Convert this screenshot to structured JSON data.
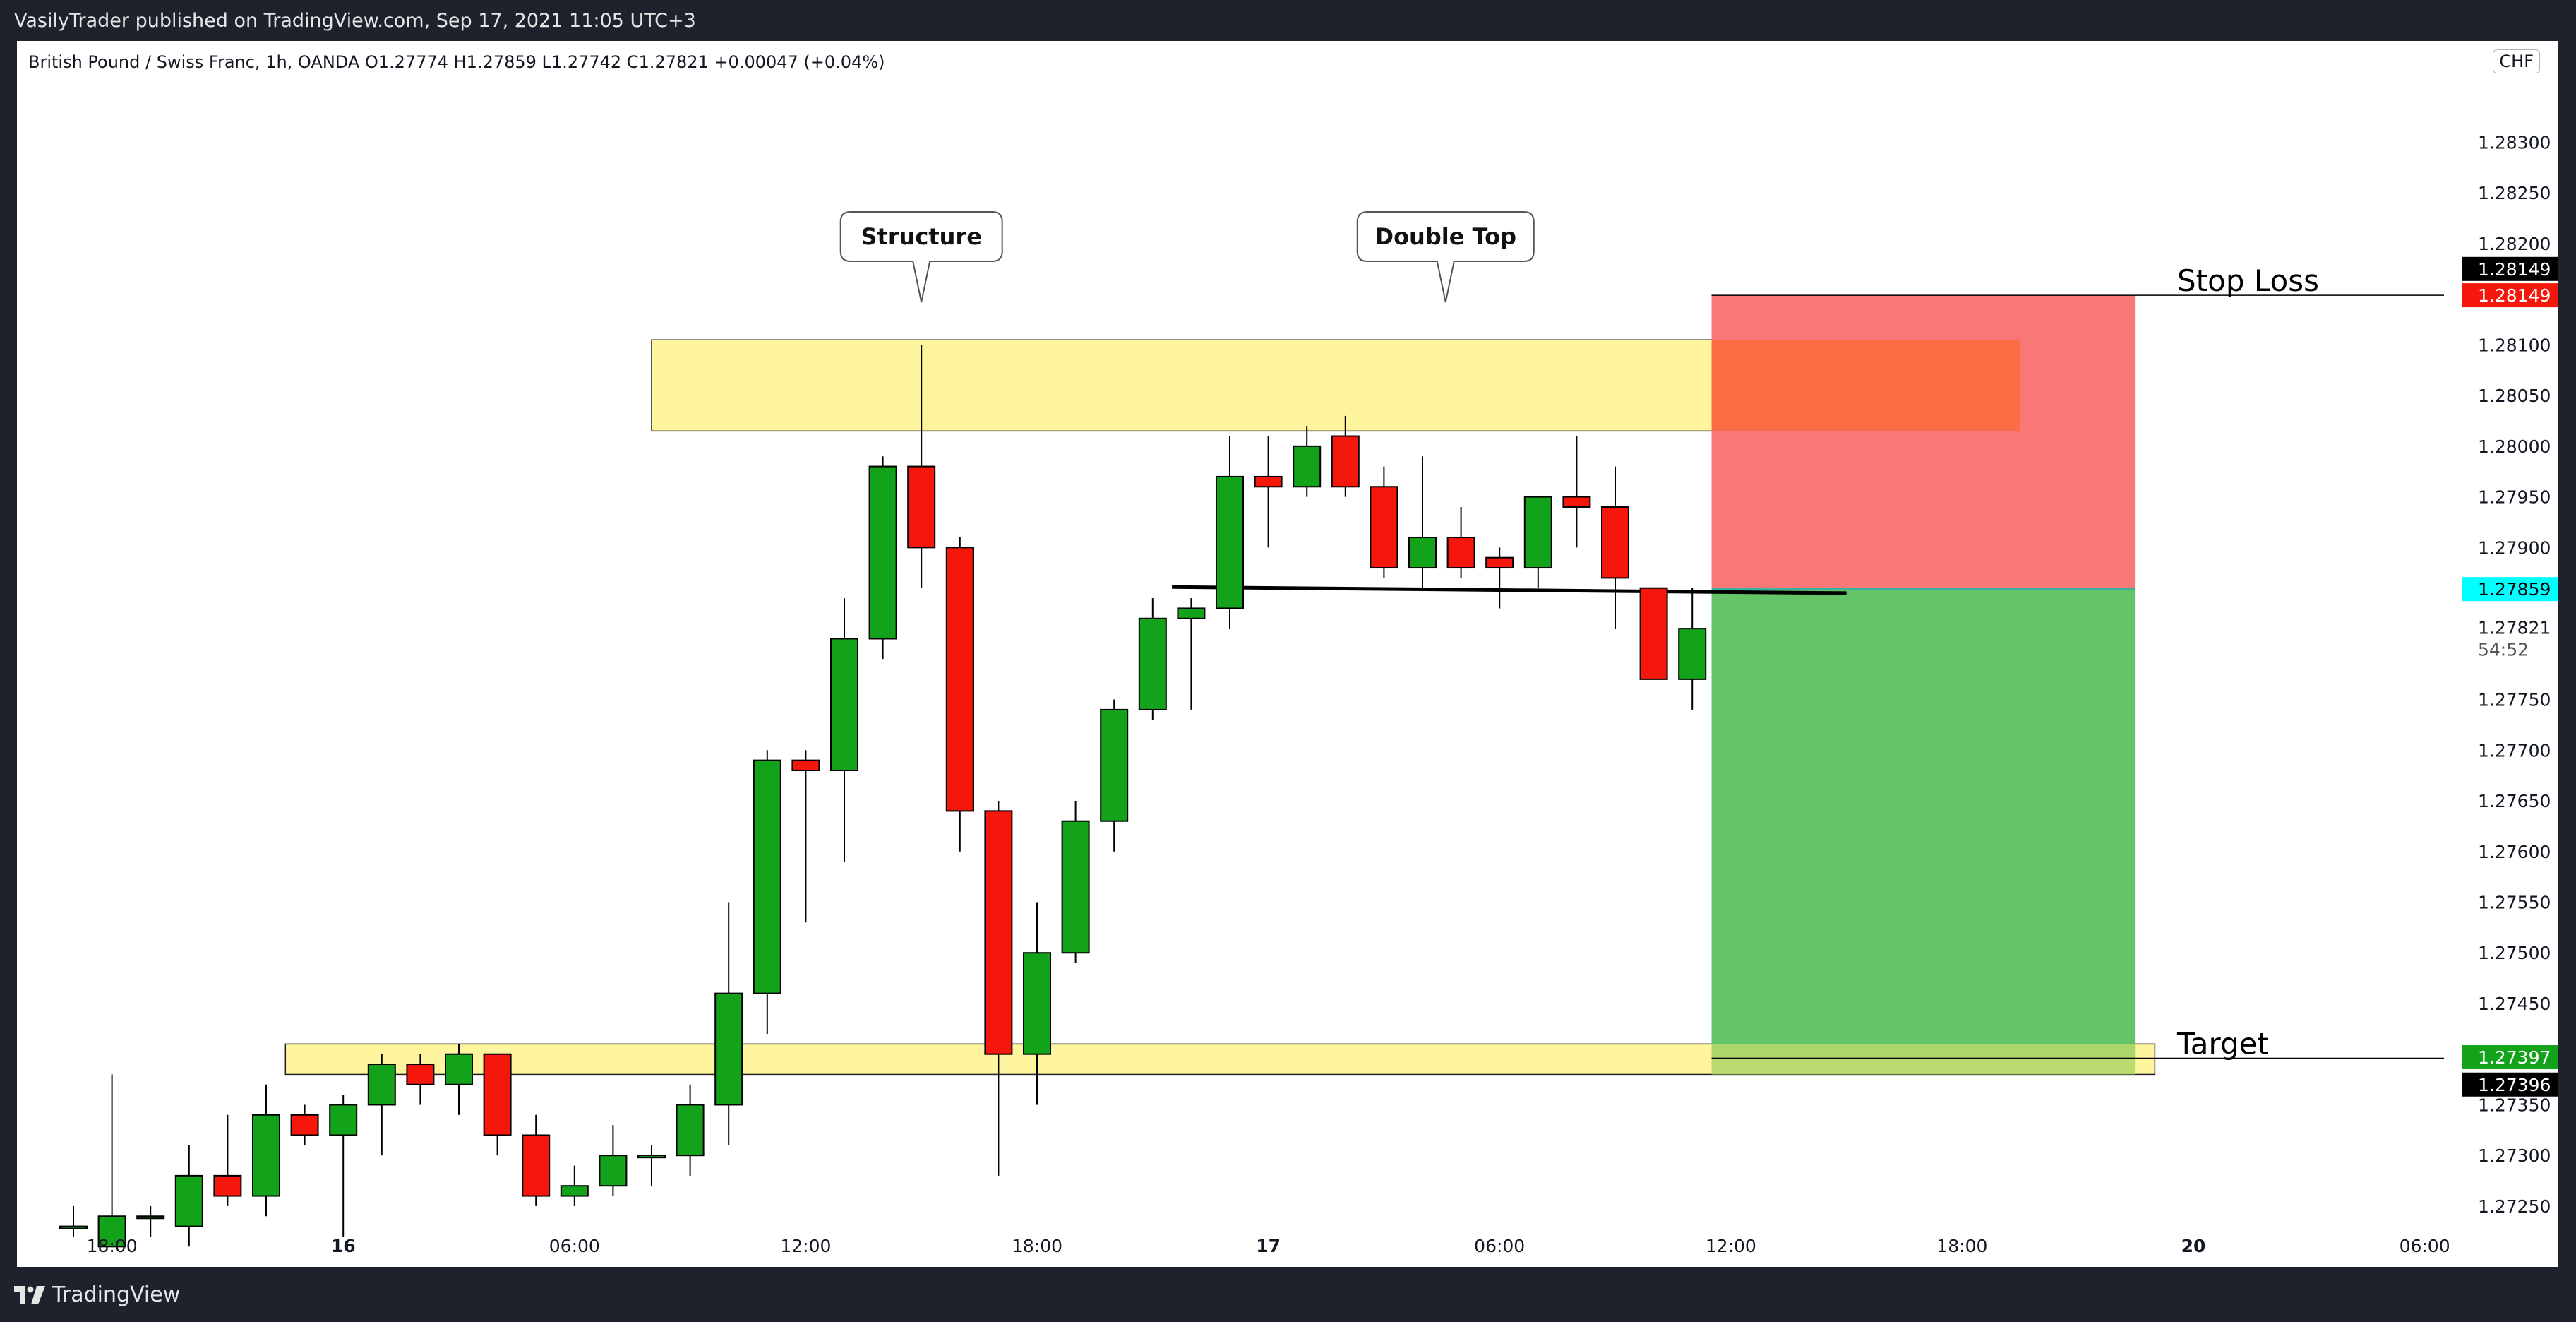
{
  "header": {
    "published": "VasilyTrader published on TradingView.com, Sep 17, 2021 11:05 UTC+3"
  },
  "legend": {
    "text": "British Pound / Swiss Franc, 1h, OANDA  O1.27774  H1.27859  L1.27742  C1.27821  +0.00047 (+0.04%)"
  },
  "currency": "CHF",
  "footer": {
    "brand": "TradingView"
  },
  "colors": {
    "up": "#13a31a",
    "down": "#f5170c",
    "zone": "#fff59e",
    "stop": "#f87171",
    "target": "#5cc15f",
    "price": "#00ffff"
  },
  "chart_data": {
    "type": "candlestick",
    "symbol": "GBPCHF",
    "timeframe": "1h",
    "ylim": [
      1.2719,
      1.284
    ],
    "y_ticks": [
      "1.28300",
      "1.28250",
      "1.28200",
      "1.28100",
      "1.28050",
      "1.28000",
      "1.27950",
      "1.27900",
      "1.27750",
      "1.27700",
      "1.27650",
      "1.27600",
      "1.27550",
      "1.27500",
      "1.27450",
      "1.27350",
      "1.27300",
      "1.27250"
    ],
    "x_ticks": [
      {
        "label": "18:00",
        "bar": 1
      },
      {
        "label": "16",
        "bar": 7
      },
      {
        "label": "06:00",
        "bar": 13
      },
      {
        "label": "12:00",
        "bar": 19
      },
      {
        "label": "18:00",
        "bar": 25
      },
      {
        "label": "17",
        "bar": 31
      },
      {
        "label": "06:00",
        "bar": 37
      },
      {
        "label": "12:00",
        "bar": 43
      },
      {
        "label": "18:00",
        "bar": 49
      },
      {
        "label": "20",
        "bar": 55
      },
      {
        "label": "06:00",
        "bar": 61
      }
    ],
    "candles": [
      {
        "o": 1.2723,
        "h": 1.2725,
        "l": 1.2722,
        "c": 1.2723
      },
      {
        "o": 1.2721,
        "h": 1.2738,
        "l": 1.2721,
        "c": 1.2724
      },
      {
        "o": 1.2724,
        "h": 1.2725,
        "l": 1.2722,
        "c": 1.2724
      },
      {
        "o": 1.2723,
        "h": 1.2731,
        "l": 1.2721,
        "c": 1.2728
      },
      {
        "o": 1.2728,
        "h": 1.2734,
        "l": 1.2725,
        "c": 1.2726
      },
      {
        "o": 1.2726,
        "h": 1.2737,
        "l": 1.2724,
        "c": 1.2734
      },
      {
        "o": 1.2734,
        "h": 1.2735,
        "l": 1.2731,
        "c": 1.2732
      },
      {
        "o": 1.2732,
        "h": 1.2736,
        "l": 1.2722,
        "c": 1.2735
      },
      {
        "o": 1.2735,
        "h": 1.274,
        "l": 1.273,
        "c": 1.2739
      },
      {
        "o": 1.2739,
        "h": 1.274,
        "l": 1.2735,
        "c": 1.2737
      },
      {
        "o": 1.2737,
        "h": 1.2741,
        "l": 1.2734,
        "c": 1.274
      },
      {
        "o": 1.274,
        "h": 1.274,
        "l": 1.273,
        "c": 1.2732
      },
      {
        "o": 1.2732,
        "h": 1.2734,
        "l": 1.2725,
        "c": 1.2726
      },
      {
        "o": 1.2726,
        "h": 1.2729,
        "l": 1.2725,
        "c": 1.2727
      },
      {
        "o": 1.2727,
        "h": 1.2733,
        "l": 1.2726,
        "c": 1.273
      },
      {
        "o": 1.273,
        "h": 1.2731,
        "l": 1.2727,
        "c": 1.273
      },
      {
        "o": 1.273,
        "h": 1.2737,
        "l": 1.2728,
        "c": 1.2735
      },
      {
        "o": 1.2735,
        "h": 1.2755,
        "l": 1.2731,
        "c": 1.2746
      },
      {
        "o": 1.2746,
        "h": 1.277,
        "l": 1.2742,
        "c": 1.2769
      },
      {
        "o": 1.2769,
        "h": 1.277,
        "l": 1.2753,
        "c": 1.2768
      },
      {
        "o": 1.2768,
        "h": 1.2785,
        "l": 1.2759,
        "c": 1.2781
      },
      {
        "o": 1.2781,
        "h": 1.2799,
        "l": 1.2779,
        "c": 1.2798
      },
      {
        "o": 1.2798,
        "h": 1.281,
        "l": 1.2786,
        "c": 1.279
      },
      {
        "o": 1.279,
        "h": 1.2791,
        "l": 1.276,
        "c": 1.2764
      },
      {
        "o": 1.2764,
        "h": 1.2765,
        "l": 1.2728,
        "c": 1.274
      },
      {
        "o": 1.274,
        "h": 1.2755,
        "l": 1.2735,
        "c": 1.275
      },
      {
        "o": 1.275,
        "h": 1.2765,
        "l": 1.2749,
        "c": 1.2763
      },
      {
        "o": 1.2763,
        "h": 1.2775,
        "l": 1.276,
        "c": 1.2774
      },
      {
        "o": 1.2774,
        "h": 1.2785,
        "l": 1.2773,
        "c": 1.2783
      },
      {
        "o": 1.2783,
        "h": 1.2785,
        "l": 1.2774,
        "c": 1.2784
      },
      {
        "o": 1.2784,
        "h": 1.2801,
        "l": 1.2782,
        "c": 1.2797
      },
      {
        "o": 1.2797,
        "h": 1.2801,
        "l": 1.279,
        "c": 1.2796
      },
      {
        "o": 1.2796,
        "h": 1.2802,
        "l": 1.2795,
        "c": 1.28
      },
      {
        "o": 1.2801,
        "h": 1.2803,
        "l": 1.2795,
        "c": 1.2796
      },
      {
        "o": 1.2796,
        "h": 1.2798,
        "l": 1.2787,
        "c": 1.2788
      },
      {
        "o": 1.2788,
        "h": 1.2799,
        "l": 1.2786,
        "c": 1.2791
      },
      {
        "o": 1.2791,
        "h": 1.2794,
        "l": 1.2787,
        "c": 1.2788
      },
      {
        "o": 1.2789,
        "h": 1.279,
        "l": 1.2784,
        "c": 1.2788
      },
      {
        "o": 1.2788,
        "h": 1.2795,
        "l": 1.2786,
        "c": 1.2795
      },
      {
        "o": 1.2795,
        "h": 1.2801,
        "l": 1.279,
        "c": 1.2794
      },
      {
        "o": 1.2794,
        "h": 1.2798,
        "l": 1.2782,
        "c": 1.2787
      },
      {
        "o": 1.2786,
        "h": 1.2786,
        "l": 1.2777,
        "c": 1.2777
      },
      {
        "o": 1.2777,
        "h": 1.2786,
        "l": 1.2774,
        "c": 1.2782
      }
    ],
    "zones": [
      {
        "name": "resistance",
        "from_bar": 15,
        "to_bar": 50.5,
        "y_low": 1.28015,
        "y_high": 1.28105
      },
      {
        "name": "support",
        "from_bar": 5.5,
        "to_bar": 54,
        "y_low": 1.2738,
        "y_high": 1.2741
      }
    ],
    "horizontal_line": {
      "from_bar": 28.5,
      "to_bar": 46,
      "y_start": 1.27861,
      "y_end": 1.27855
    },
    "position": {
      "type": "short",
      "from_bar": 42.5,
      "to_bar": 53.5,
      "entry": 1.27859,
      "stop": 1.28149,
      "target": 1.27396,
      "stop_label": "Stop Loss",
      "target_label": "Target"
    },
    "annotations": [
      {
        "text": "Structure",
        "bar": 22
      },
      {
        "text": "Double Top",
        "bar": 35.6
      }
    ],
    "price_labels": [
      {
        "value": "1.28149",
        "bg": "#000000",
        "fg": "#ffffff",
        "y": 1.28175
      },
      {
        "value": "1.28149",
        "bg": "#f5170c",
        "fg": "#ffffff",
        "y": 1.28149
      },
      {
        "value": "1.27859",
        "bg": "#00ffff",
        "fg": "#000000",
        "y": 1.27859
      },
      {
        "value": "1.27397",
        "bg": "#13a31a",
        "fg": "#ffffff",
        "y": 1.27397
      },
      {
        "value": "1.27396",
        "bg": "#000000",
        "fg": "#ffffff",
        "y": 1.2737
      }
    ],
    "last_price": {
      "value": "1.27821",
      "countdown": "54:52"
    }
  }
}
